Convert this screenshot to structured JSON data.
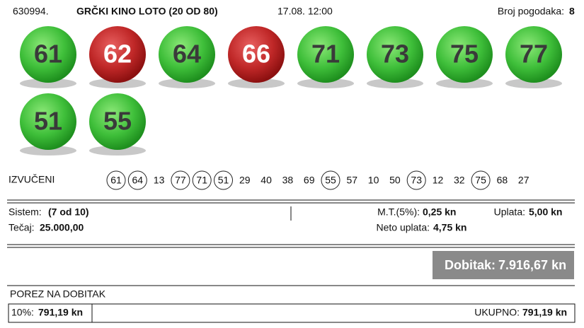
{
  "header": {
    "id": "630994.",
    "title": "GRČKI KINO LOTO (20 OD 80)",
    "datetime": "17.08. 12:00",
    "hits_label": "Broj pogodaka:",
    "hits": "8"
  },
  "balls": [
    {
      "number": 61,
      "hit": true
    },
    {
      "number": 62,
      "hit": false
    },
    {
      "number": 64,
      "hit": true
    },
    {
      "number": 66,
      "hit": false
    },
    {
      "number": 71,
      "hit": true
    },
    {
      "number": 73,
      "hit": true
    },
    {
      "number": 75,
      "hit": true
    },
    {
      "number": 77,
      "hit": true
    },
    {
      "number": 51,
      "hit": true
    },
    {
      "number": 55,
      "hit": true
    }
  ],
  "drawn": {
    "label": "IZVUČENI",
    "numbers": [
      61,
      64,
      13,
      77,
      71,
      51,
      29,
      40,
      38,
      69,
      55,
      57,
      10,
      50,
      73,
      12,
      32,
      75,
      68,
      27
    ]
  },
  "details": {
    "system_label": "Sistem:",
    "system": "(7 od 10)",
    "odds_label": "Tečaj:",
    "odds": "25.000,00",
    "fee_label": "M.T.(5%):",
    "fee": "0,25 kn",
    "net_label": "Neto uplata:",
    "net": "4,75 kn",
    "stake_label": "Uplata:",
    "stake": "5,00 kn"
  },
  "win": {
    "label": "Dobitak:",
    "amount": "7.916,67 kn"
  },
  "tax": {
    "title": "POREZ NA DOBITAK",
    "rate": "10%:",
    "amount": "791,19 kn",
    "total_label": "UKUPNO:",
    "total": "791,19 kn"
  }
}
